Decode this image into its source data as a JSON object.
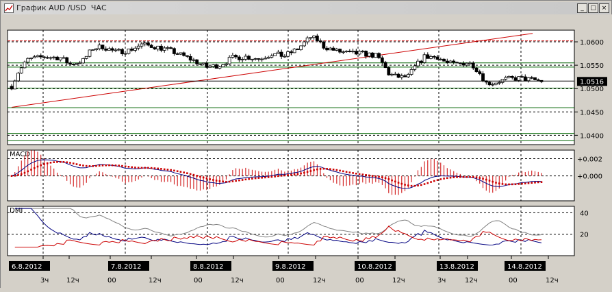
{
  "window": {
    "title": "График AUD /USD  ЧАС",
    "minimize_label": "_",
    "maximize_label": "□",
    "close_label": "×"
  },
  "chart_data": {
    "type": "candlestick",
    "title": "График AUD /USD  ЧАС",
    "symbol": "AUD/USD",
    "timeframe": "ЧАС",
    "price_axis": {
      "ylim": [
        1.038,
        1.0625
      ],
      "ticks": [
        1.06,
        1.055,
        1.05,
        1.045,
        1.04
      ],
      "tick_labels": [
        "1.0600",
        "1.0550",
        "1.0500",
        "1.0450",
        "1.0400"
      ],
      "last_price": 1.0516,
      "last_price_label": "1.0516"
    },
    "horizontal_levels": [
      {
        "value": 1.0602,
        "color": "#cc0000",
        "style": "dashed"
      },
      {
        "value": 1.0555,
        "color": "#006400",
        "style": "solid"
      },
      {
        "value": 1.0546,
        "color": "#006400",
        "style": "solid"
      },
      {
        "value": 1.0501,
        "color": "#006400",
        "style": "solid"
      },
      {
        "value": 1.0459,
        "color": "#006400",
        "style": "solid"
      },
      {
        "value": 1.0404,
        "color": "#006400",
        "style": "solid"
      },
      {
        "value": 1.0389,
        "color": "#006400",
        "style": "solid"
      }
    ],
    "trendline": {
      "color": "#cc0000",
      "from": [
        0,
        1.046
      ],
      "to": [
        118,
        1.0618
      ]
    },
    "close_series_color": "#000000",
    "macd": {
      "label": "MACD",
      "ylim": [
        -0.0029,
        0.003
      ],
      "ticks": [
        0.002,
        0.0
      ],
      "tick_labels": [
        "+0.002",
        "+0.000"
      ],
      "macd_color": "#000080",
      "signal_color": "#cc0000",
      "histogram_color": "#cc0000"
    },
    "dmi": {
      "label": "DMI",
      "ylim": [
        0,
        46
      ],
      "ticks": [
        40,
        20
      ],
      "tick_labels": [
        "40",
        "20"
      ],
      "series": [
        {
          "key": "adx",
          "color": "#808080"
        },
        {
          "key": "pdi",
          "color": "#000080"
        },
        {
          "key": "mdi",
          "color": "#cc0000"
        }
      ]
    },
    "dates": [
      "6.8.2012",
      "7.8.2012",
      "8.8.2012",
      "9.8.2012",
      "10.8.2012",
      "13.8.2012",
      "14.8.2012"
    ],
    "time_ticks": [
      "3ч",
      "12ч",
      "00",
      "12ч",
      "00",
      "12ч",
      "00",
      "12ч",
      "00",
      "12ч",
      "3ч",
      "12ч",
      "00",
      "12ч"
    ]
  }
}
